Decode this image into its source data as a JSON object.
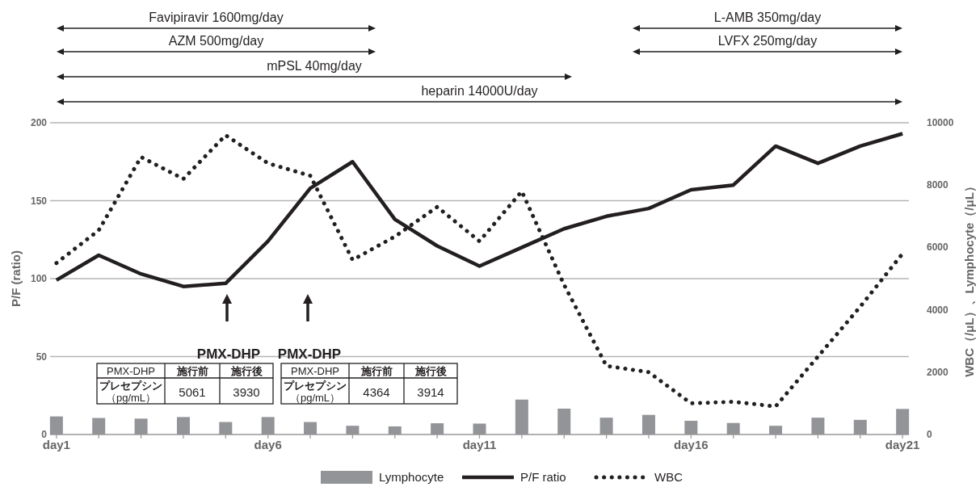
{
  "chart_data": {
    "type": "line",
    "ylabel": "P/F (ratio)",
    "y2label": "WBC（/μL）、Lymphocyte（/μL）",
    "categories": [
      "day1",
      null,
      null,
      null,
      null,
      "day6",
      null,
      null,
      null,
      null,
      "day11",
      null,
      null,
      null,
      null,
      "day16",
      null,
      null,
      null,
      null,
      "day21"
    ],
    "ylim": [
      0,
      200
    ],
    "yticks": [
      0,
      50,
      100,
      150,
      200
    ],
    "y2lim": [
      0,
      10000
    ],
    "y2ticks": [
      0,
      2000,
      4000,
      6000,
      8000,
      10000
    ],
    "grid": "y",
    "legend": "bottom",
    "series": [
      {
        "name": "Lymphocyte",
        "type": "bar",
        "axis": "y2",
        "color": "#939498",
        "values": [
          580,
          530,
          510,
          560,
          400,
          560,
          400,
          280,
          260,
          360,
          350,
          1120,
          830,
          540,
          630,
          440,
          370,
          280,
          540,
          470,
          820
        ]
      },
      {
        "name": "P/F ratio",
        "color": "#231f20",
        "line_style": "solid",
        "values": [
          99,
          115,
          103,
          95,
          97,
          124,
          158,
          175,
          138,
          121,
          108,
          120,
          132,
          140,
          145,
          157,
          160,
          185,
          174,
          185,
          193
        ]
      },
      {
        "name": "WBC",
        "axis": "y2",
        "color": "#231f20",
        "line_style": "dotted",
        "values": [
          5500,
          6550,
          8900,
          8200,
          9600,
          8700,
          8300,
          5600,
          6350,
          7300,
          6200,
          7800,
          4800,
          2200,
          2000,
          1000,
          1050,
          900,
          2500,
          4100,
          5800
        ]
      }
    ],
    "annotations": [
      "Favipiravir 1600mg/day",
      "AZM 500mg/day",
      "mPSL 40mg/day",
      "heparin 14000U/day",
      "L-AMB 350mg/day",
      "LVFX 250mg/day",
      "PMX-DHP",
      "PMX-DHP",
      "PMX-DHP",
      "施行前",
      "施行後",
      "プレセプシン（pg/mL）",
      "5061",
      "3930",
      "PMX-DHP",
      "施行前",
      "施行後",
      "プレセプシン（pg/mL）",
      "4364",
      "3914"
    ]
  }
}
